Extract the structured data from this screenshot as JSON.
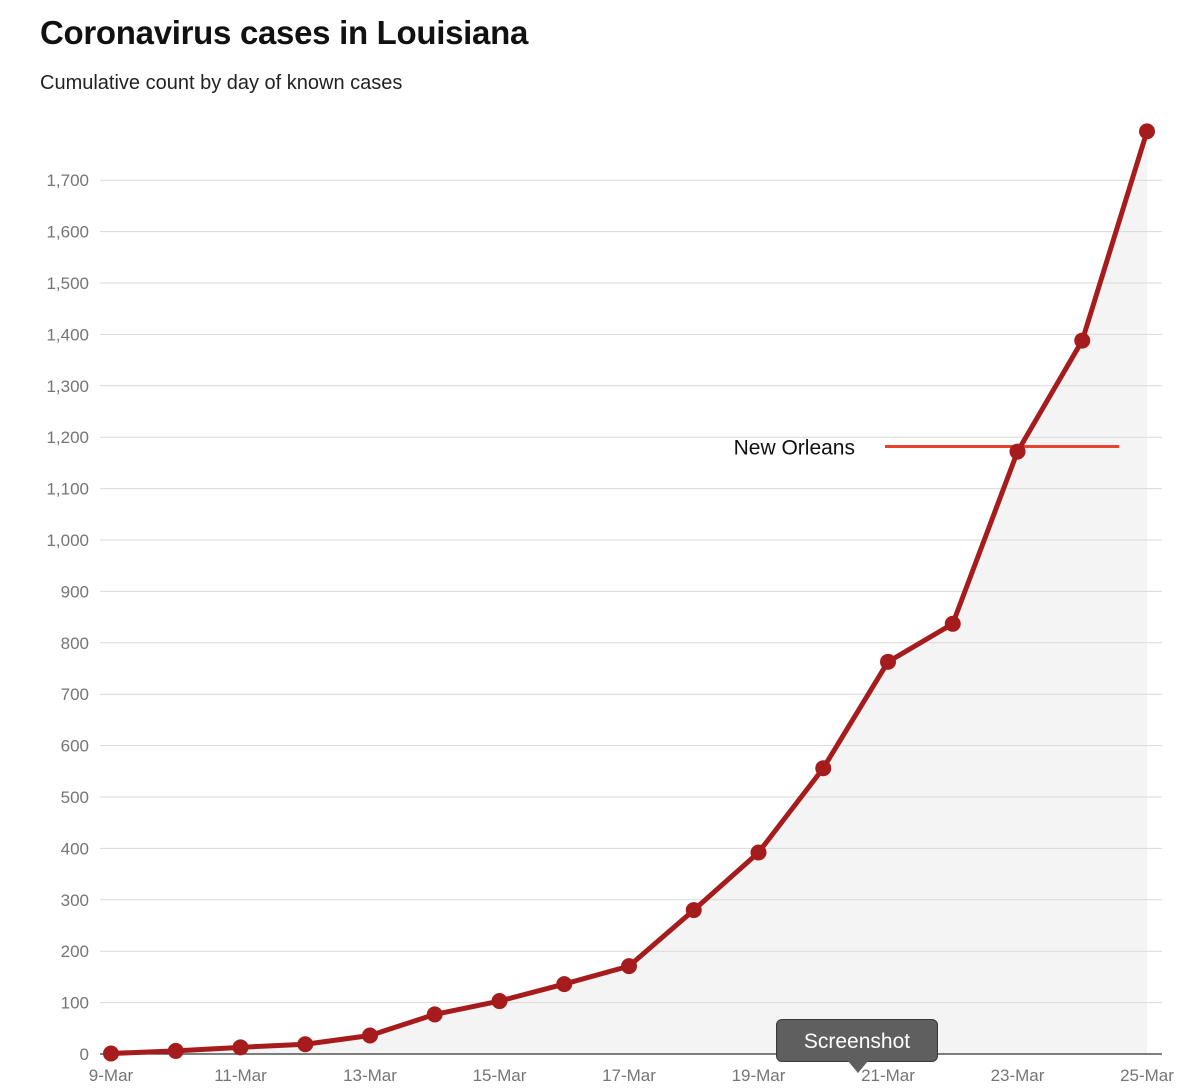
{
  "header": {
    "title": "Coronavirus cases in Louisiana",
    "subtitle": "Cumulative count by day of known cases"
  },
  "tooltip": {
    "label": "Screenshot"
  },
  "colors": {
    "line": "#a61c1c",
    "area": "#f4f4f5",
    "grid": "#d9d9d9",
    "annotation_line": "#e8432f",
    "axis_text": "#757575"
  },
  "chart_data": {
    "type": "line",
    "title": "Coronavirus cases in Louisiana",
    "subtitle": "Cumulative count by day of known cases",
    "xlabel": "",
    "ylabel": "",
    "x": [
      "9-Mar",
      "10-Mar",
      "11-Mar",
      "12-Mar",
      "13-Mar",
      "14-Mar",
      "15-Mar",
      "16-Mar",
      "17-Mar",
      "18-Mar",
      "19-Mar",
      "20-Mar",
      "21-Mar",
      "22-Mar",
      "23-Mar",
      "24-Mar",
      "25-Mar"
    ],
    "x_tick_labels": [
      "9-Mar",
      "11-Mar",
      "13-Mar",
      "15-Mar",
      "17-Mar",
      "19-Mar",
      "21-Mar",
      "23-Mar",
      "25-Mar"
    ],
    "series": [
      {
        "values": [
          1,
          6,
          13,
          19,
          36,
          77,
          103,
          136,
          171,
          280,
          392,
          556,
          763,
          837,
          1172,
          1388,
          1795
        ]
      }
    ],
    "ylim": [
      0,
      1800
    ],
    "y_ticks": [
      0,
      100,
      200,
      300,
      400,
      500,
      600,
      700,
      800,
      900,
      1000,
      1100,
      1200,
      1300,
      1400,
      1500,
      1600,
      1700
    ],
    "y_tick_labels": [
      "0",
      "100",
      "200",
      "300",
      "400",
      "500",
      "600",
      "700",
      "800",
      "900",
      "1,000",
      "1,100",
      "1,200",
      "1,300",
      "1,400",
      "1,500",
      "1,600",
      "1,700"
    ],
    "grid": true,
    "annotations": [
      {
        "label": "New Orleans",
        "y": 1182,
        "x_start": "21-Mar",
        "x_end": "24-Mar"
      }
    ]
  }
}
